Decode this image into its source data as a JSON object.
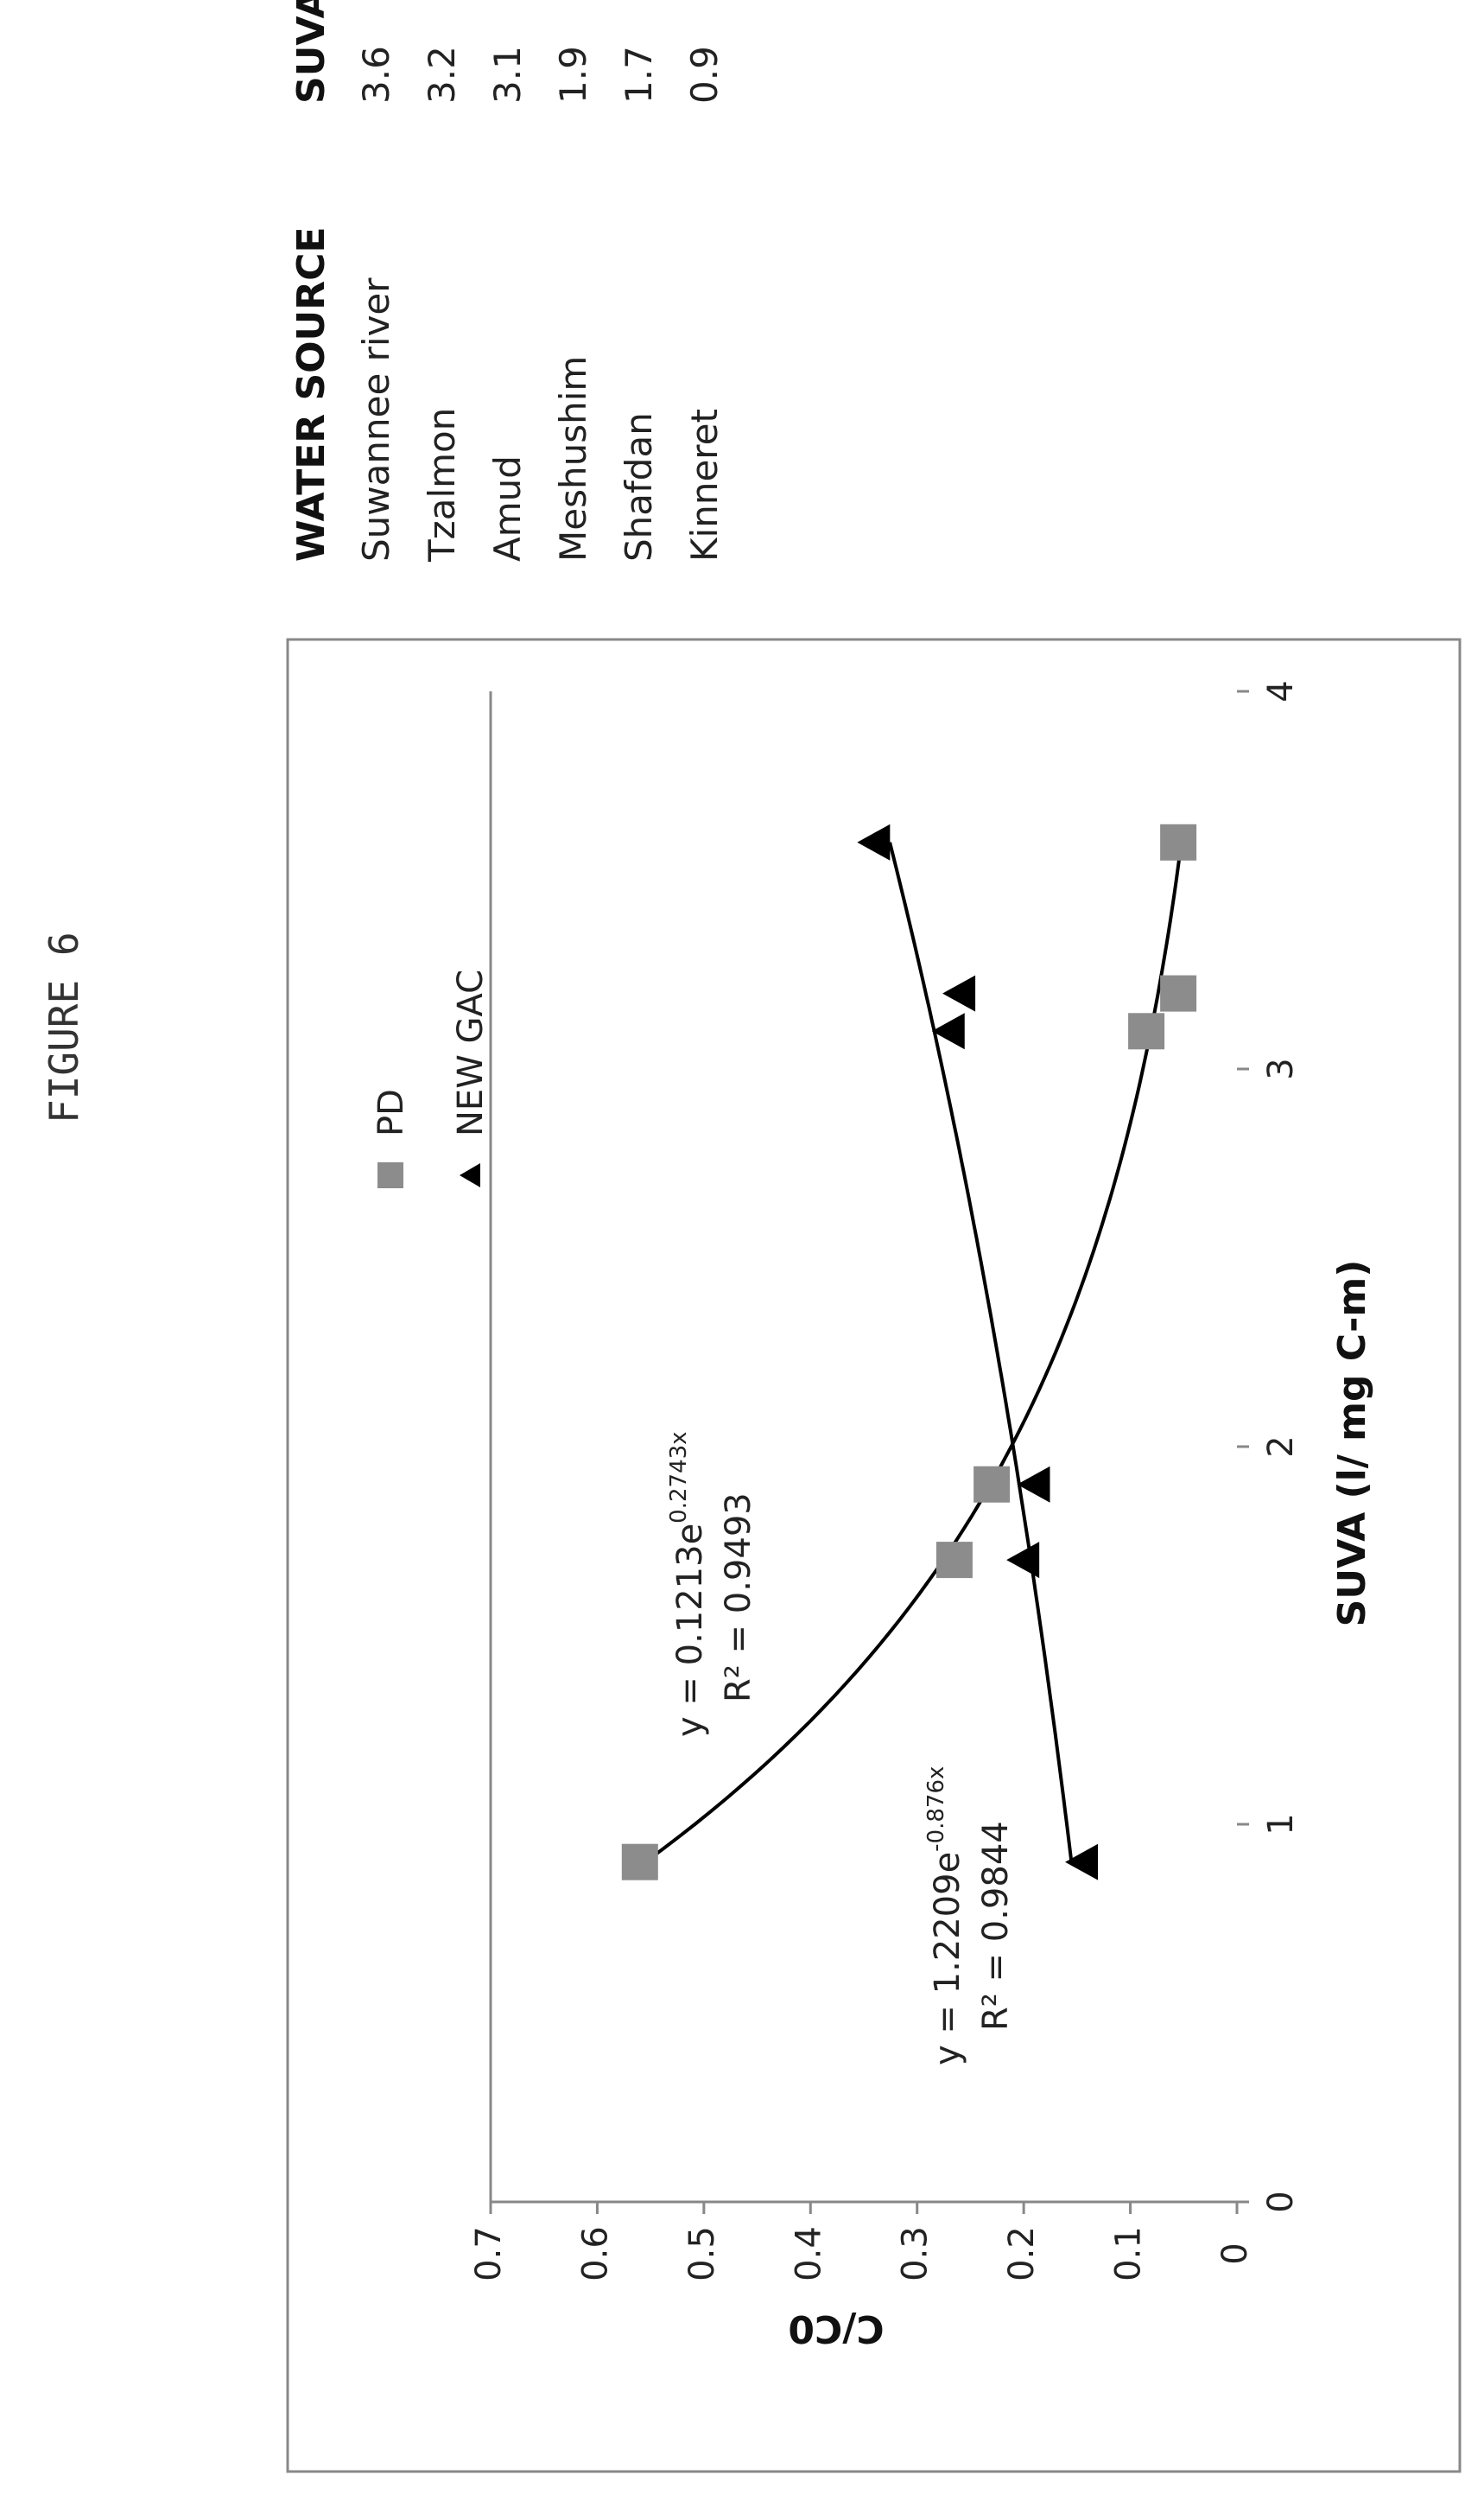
{
  "figure_label": "FIGURE 6",
  "source_table": {
    "header_source": "WATER SOURCE",
    "header_suva": "SUVA",
    "rows": [
      {
        "source": "Suwannee river",
        "suva": "3.6"
      },
      {
        "source": "Tzalmon",
        "suva": "3.2"
      },
      {
        "source": "Amud",
        "suva": "3.1"
      },
      {
        "source": "Meshushim",
        "suva": "1.9"
      },
      {
        "source": "Shafdan",
        "suva": "1.7"
      },
      {
        "source": "Kinneret",
        "suva": "0.9"
      }
    ]
  },
  "chart_data": {
    "type": "scatter",
    "rotation": "rotated 90 degrees clockwise",
    "xlabel": "SUVA (l/ mg C-m)",
    "ylabel": "C/C0",
    "xlim": [
      0,
      4
    ],
    "ylim": [
      0,
      0.7
    ],
    "x_ticks": [
      "0",
      "1",
      "2",
      "3",
      "4"
    ],
    "y_ticks": [
      "0",
      "0.1",
      "0.2",
      "0.3",
      "0.4",
      "0.5",
      "0.6",
      "0.7"
    ],
    "grid": false,
    "legend_position": "top-left",
    "series": [
      {
        "name": "PD",
        "marker": "square",
        "color": "#8c8c8c",
        "x": [
          3.6,
          3.2,
          3.1,
          1.9,
          1.7,
          0.9
        ],
        "y": [
          0.055,
          0.055,
          0.085,
          0.23,
          0.265,
          0.56
        ],
        "trendline": {
          "type": "exponential",
          "a": 1.2209,
          "b": -0.876,
          "x_range": [
            0.9,
            3.6
          ],
          "equation_prefix": "y = 1.2209e",
          "equation_exponent": "-0.876x",
          "r2_text": "R² = 0.9844"
        }
      },
      {
        "name": "NEW GAC",
        "marker": "triangle",
        "color": "#000000",
        "x": [
          3.6,
          3.2,
          3.1,
          1.9,
          1.7,
          0.9
        ],
        "y": [
          0.34,
          0.26,
          0.27,
          0.19,
          0.2,
          0.145
        ],
        "trendline": {
          "type": "exponential",
          "a": 0.1213,
          "b": 0.2743,
          "x_range": [
            0.9,
            3.6
          ],
          "equation_prefix": "y = 0.1213e",
          "equation_exponent": "0.2743x",
          "r2_text": "R² = 0.9493"
        }
      }
    ]
  }
}
